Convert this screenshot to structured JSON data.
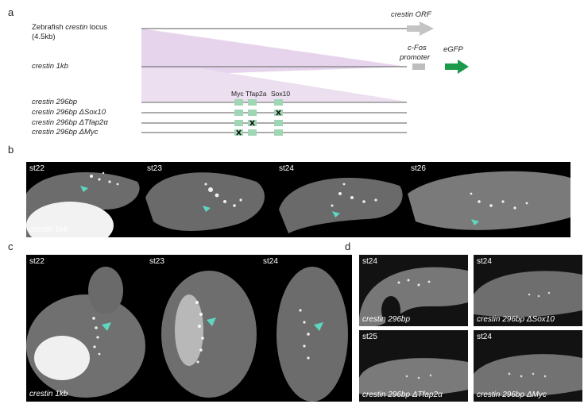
{
  "panel_a": {
    "label": "a",
    "locus_label_line1_pre": "Zebrafish ",
    "locus_label_line1_it": "crestin",
    "locus_label_line1_post": " locus",
    "locus_label_line2": "(4.5kb)",
    "orf_label": "crestin ORF",
    "promoter_label_1": "c-Fos",
    "promoter_label_2": "promoter",
    "egfp_label": "eGFP",
    "one_kb_label": "crestin 1kb",
    "motif_labels": [
      "Myc",
      "Tfap2a",
      "Sox10"
    ],
    "constructs": [
      "crestin 296bp",
      "crestin 296bp ΔSox10",
      "crestin 296bp ΔTfap2α",
      "crestin 296bp ΔMyc"
    ],
    "colors": {
      "line": "#7a7a7a",
      "arrow_grey": "#c4c4c4",
      "arrow_green": "#1a9a4a",
      "motif": "#9fd6b4",
      "zoom": "#e4d2ea"
    }
  },
  "panel_b": {
    "label": "b",
    "stages": [
      "st22",
      "st23",
      "st24",
      "st26"
    ],
    "caption": "crestin 1kb"
  },
  "panel_c": {
    "label": "c",
    "stages": [
      "st22",
      "st23",
      "st24"
    ],
    "caption": "crestin 1kb"
  },
  "panel_d": {
    "label": "d",
    "tiles": [
      {
        "stage": "st24",
        "caption": "crestin 296bp"
      },
      {
        "stage": "st24",
        "caption": "crestin 296bp ΔSox10"
      },
      {
        "stage": "st25",
        "caption": "crestin 296bp ΔTfap2α"
      },
      {
        "stage": "st24",
        "caption": "crestin 296bp ΔMyc"
      }
    ]
  },
  "marker_color": "#5ed6c0"
}
